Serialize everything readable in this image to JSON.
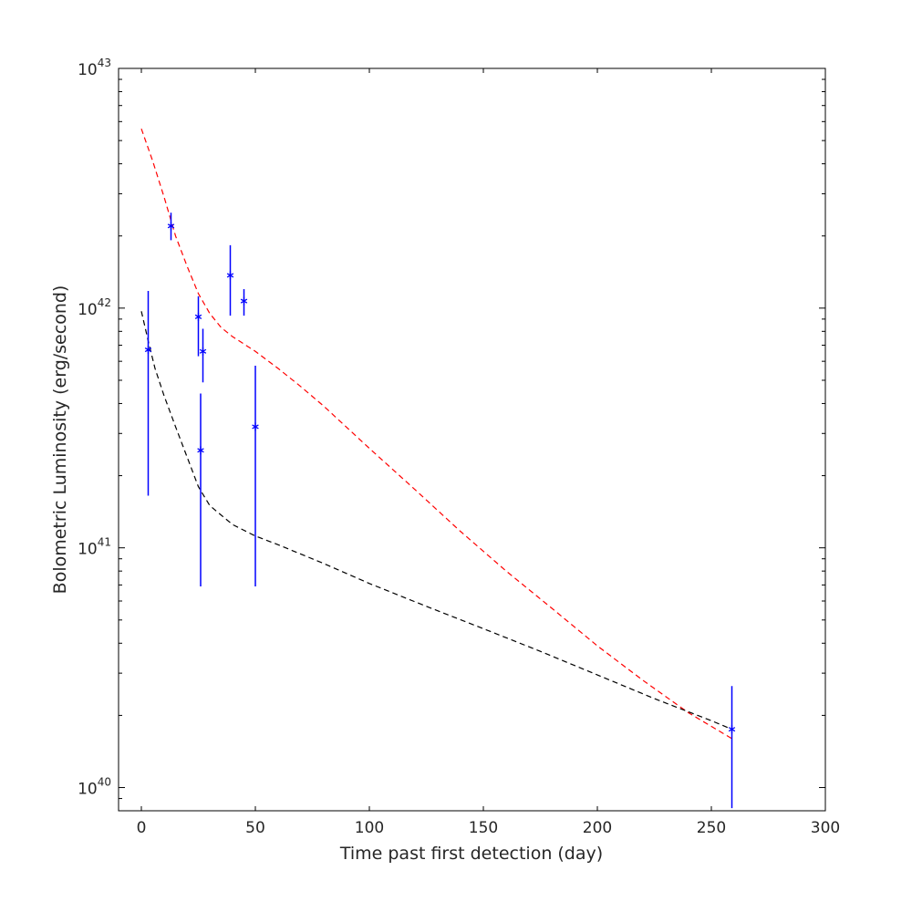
{
  "chart_data": {
    "type": "scatter",
    "title": "",
    "xlabel": "Time past first detection (day)",
    "ylabel": "Bolometric Luminosity (erg/second)",
    "xlim": [
      -10,
      300
    ],
    "ylim": [
      8e+39,
      1e+43
    ],
    "yscale": "log",
    "grid": false,
    "x_ticks": [
      0,
      50,
      100,
      150,
      200,
      250,
      300
    ],
    "y_ticks": [
      {
        "value": 1e+40,
        "base": "10",
        "exponent": "40"
      },
      {
        "value": 1e+41,
        "base": "10",
        "exponent": "41"
      },
      {
        "value": 1e+42,
        "base": "10",
        "exponent": "42"
      },
      {
        "value": 1e+43,
        "base": "10",
        "exponent": "43"
      }
    ],
    "colors": {
      "points": "#0000ff",
      "red_model": "#ff0000",
      "black_model": "#000000"
    },
    "series": [
      {
        "kind": "errorbar",
        "marker": "asterisk",
        "points": [
          {
            "x": 3,
            "y": 6.7e+41,
            "ylow": 1.65e+41,
            "yhigh": 1.18e+42
          },
          {
            "x": 13,
            "y": 2.2e+42,
            "ylow": 1.92e+42,
            "yhigh": 2.5e+42
          },
          {
            "x": 25,
            "y": 9.2e+41,
            "ylow": 6.3e+41,
            "yhigh": 1.12e+42
          },
          {
            "x": 26,
            "y": 2.55e+41,
            "ylow": 6.9e+40,
            "yhigh": 4.4e+41
          },
          {
            "x": 27,
            "y": 6.6e+41,
            "ylow": 4.9e+41,
            "yhigh": 8.2e+41
          },
          {
            "x": 39,
            "y": 1.37e+42,
            "ylow": 9.3e+41,
            "yhigh": 1.83e+42
          },
          {
            "x": 45,
            "y": 1.07e+42,
            "ylow": 9.3e+41,
            "yhigh": 1.2e+42
          },
          {
            "x": 50,
            "y": 3.2e+41,
            "ylow": 6.9e+40,
            "yhigh": 5.75e+41
          },
          {
            "x": 259,
            "y": 1.75e+40,
            "ylow": 8.2e+39,
            "yhigh": 2.65e+40
          }
        ]
      },
      {
        "kind": "line",
        "style": "dashed",
        "color_key": "red_model",
        "points": [
          [
            0,
            5.6e+42
          ],
          [
            5,
            4.1e+42
          ],
          [
            10,
            2.9e+42
          ],
          [
            15,
            2e+42
          ],
          [
            20,
            1.5e+42
          ],
          [
            25,
            1.15e+42
          ],
          [
            30,
            9.5e+41
          ],
          [
            35,
            8.3e+41
          ],
          [
            40,
            7.6e+41
          ],
          [
            50,
            6.6e+41
          ],
          [
            60,
            5.6e+41
          ],
          [
            70,
            4.7e+41
          ],
          [
            80,
            3.9e+41
          ],
          [
            100,
            2.6e+41
          ],
          [
            120,
            1.75e+41
          ],
          [
            140,
            1.17e+41
          ],
          [
            160,
            8e+40
          ],
          [
            180,
            5.6e+40
          ],
          [
            200,
            3.9e+40
          ],
          [
            220,
            2.8e+40
          ],
          [
            240,
            2.05e+40
          ],
          [
            259,
            1.6e+40
          ]
        ]
      },
      {
        "kind": "line",
        "style": "dashed",
        "color_key": "black_model",
        "points": [
          [
            0,
            9.7e+41
          ],
          [
            3,
            7.3e+41
          ],
          [
            6,
            5.6e+41
          ],
          [
            10,
            4.3e+41
          ],
          [
            15,
            3.2e+41
          ],
          [
            20,
            2.4e+41
          ],
          [
            25,
            1.8e+41
          ],
          [
            30,
            1.5e+41
          ],
          [
            40,
            1.25e+41
          ],
          [
            50,
            1.12e+41
          ],
          [
            60,
            1.03e+41
          ],
          [
            80,
            8.6e+40
          ],
          [
            100,
            7.1e+40
          ],
          [
            125,
            5.7e+40
          ],
          [
            150,
            4.6e+40
          ],
          [
            175,
            3.7e+40
          ],
          [
            200,
            2.95e+40
          ],
          [
            225,
            2.35e+40
          ],
          [
            250,
            1.9e+40
          ],
          [
            259,
            1.75e+40
          ]
        ]
      }
    ]
  }
}
